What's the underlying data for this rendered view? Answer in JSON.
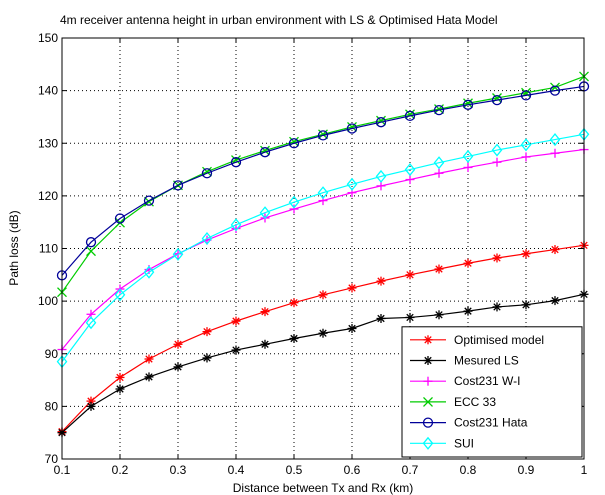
{
  "chart_data": {
    "type": "line",
    "title": "4m receiver antenna height in urban environment with LS & Optimised Hata Model",
    "xlabel": "Distance between Tx and Rx (km)",
    "ylabel": "Path loss (dB)",
    "xlim": [
      0.1,
      1
    ],
    "ylim": [
      70,
      150
    ],
    "xticks": [
      0.1,
      0.2,
      0.3,
      0.4,
      0.5,
      0.6,
      0.7,
      0.8,
      0.9,
      1
    ],
    "xtick_labels": [
      "0.1",
      "0.2",
      "0.3",
      "0.4",
      "0.5",
      "0.6",
      "0.7",
      "0.8",
      "0.9",
      "1"
    ],
    "yticks": [
      70,
      80,
      90,
      100,
      110,
      120,
      130,
      140,
      150
    ],
    "ytick_labels": [
      "70",
      "80",
      "90",
      "100",
      "110",
      "120",
      "130",
      "140",
      "150"
    ],
    "grid": true,
    "legend_position": "bottom-right",
    "x": [
      0.1,
      0.15,
      0.2,
      0.25,
      0.3,
      0.35,
      0.4,
      0.45,
      0.5,
      0.55,
      0.6,
      0.65,
      0.7,
      0.75,
      0.8,
      0.85,
      0.9,
      0.95,
      1.0
    ],
    "series": [
      {
        "name": "Optimised model",
        "color": "#ff0000",
        "marker": "star",
        "values": [
          75.2,
          81.0,
          85.5,
          89.0,
          91.8,
          94.2,
          96.2,
          98.0,
          99.7,
          101.2,
          102.5,
          103.8,
          105.0,
          106.1,
          107.2,
          108.2,
          109.0,
          109.8,
          110.6
        ]
      },
      {
        "name": "Mesured LS",
        "color": "#000000",
        "marker": "star",
        "values": [
          75.0,
          80.0,
          83.3,
          85.6,
          87.5,
          89.2,
          90.7,
          91.8,
          92.9,
          93.9,
          94.8,
          96.7,
          96.9,
          97.4,
          98.1,
          98.9,
          99.3,
          100.1,
          101.3
        ]
      },
      {
        "name": "Cost231 W-I",
        "color": "#ff00ff",
        "marker": "plus",
        "values": [
          90.8,
          97.5,
          102.3,
          106.0,
          109.0,
          111.6,
          113.8,
          115.8,
          117.5,
          119.1,
          120.6,
          121.9,
          123.1,
          124.3,
          125.4,
          126.4,
          127.4,
          128.1,
          128.8
        ]
      },
      {
        "name": "ECC 33",
        "color": "#00cc00",
        "marker": "cross",
        "values": [
          101.7,
          109.5,
          114.9,
          118.9,
          122.0,
          124.6,
          126.8,
          128.6,
          130.3,
          131.7,
          133.1,
          134.3,
          135.5,
          136.5,
          137.6,
          138.6,
          139.6,
          140.6,
          142.7
        ]
      },
      {
        "name": "Cost231 Hata",
        "color": "#000099",
        "marker": "circle",
        "values": [
          104.9,
          111.2,
          115.7,
          119.1,
          122.0,
          124.3,
          126.4,
          128.3,
          130.0,
          131.5,
          132.8,
          134.0,
          135.2,
          136.3,
          137.3,
          138.2,
          139.1,
          140.0,
          140.8
        ]
      },
      {
        "name": "SUI",
        "color": "#00ffff",
        "marker": "diamond",
        "values": [
          88.5,
          95.9,
          101.2,
          105.5,
          108.9,
          111.9,
          114.5,
          116.8,
          118.8,
          120.6,
          122.2,
          123.7,
          125.0,
          126.3,
          127.5,
          128.7,
          129.7,
          130.7,
          131.7
        ]
      }
    ]
  }
}
